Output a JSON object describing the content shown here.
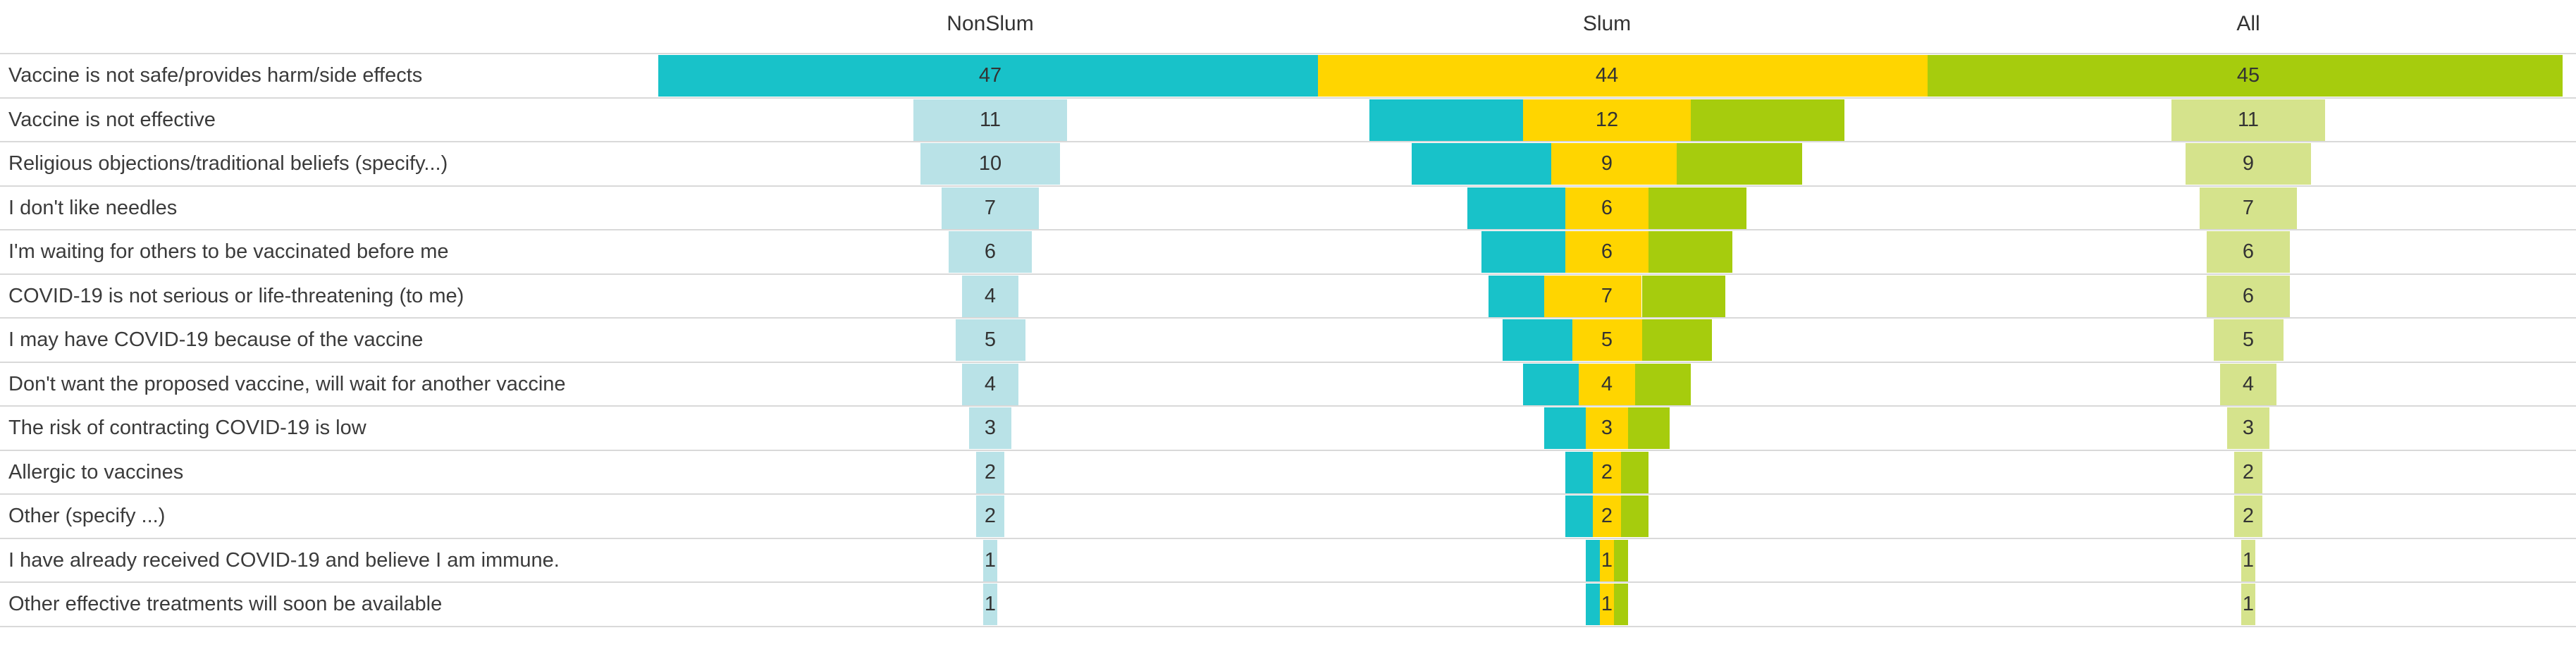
{
  "chart_data": {
    "type": "bar",
    "variant": "centered-funnel-comparison",
    "title": "",
    "value_labels_shown": true,
    "legend": "none",
    "column_headers": [
      "NonSlum",
      "Slum",
      "All"
    ],
    "categories": [
      "Vaccine is not safe/provides harm/side effects",
      "Vaccine is not effective",
      "Religious objections/traditional beliefs (specify...)",
      "I don't like needles",
      "I'm waiting for others to be vaccinated before me",
      "COVID-19 is not serious or life-threatening (to me)",
      "I may have COVID-19 because of the vaccine",
      "Don't want the proposed vaccine, will wait for another vaccine",
      "The risk of contracting COVID-19 is low",
      "Allergic to vaccines",
      "Other (specify ...)",
      "I have already received COVID-19 and believe I am immune.",
      "Other effective treatments will soon be available"
    ],
    "series": [
      {
        "name": "NonSlum",
        "values": [
          47,
          11,
          10,
          7,
          6,
          4,
          5,
          4,
          3,
          2,
          2,
          1,
          1
        ]
      },
      {
        "name": "Slum",
        "values": [
          44,
          12,
          9,
          6,
          6,
          7,
          5,
          4,
          3,
          2,
          2,
          1,
          1
        ]
      },
      {
        "name": "All",
        "values": [
          45,
          11,
          9,
          7,
          6,
          6,
          5,
          4,
          3,
          2,
          2,
          1,
          1
        ]
      }
    ],
    "colors": {
      "nonslum_strong": "#18c2c9",
      "nonslum_light": "#b9e2e7",
      "slum_yellow": "#ffd500",
      "all_strong": "#a6cc0d",
      "all_light": "#d5e38c",
      "gridline": "#d9d9d9",
      "text": "#3b3b3b"
    }
  }
}
